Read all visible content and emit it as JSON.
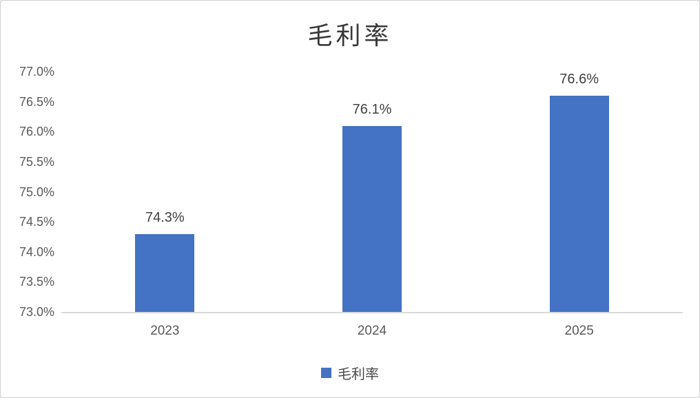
{
  "chart": {
    "title": "毛利率",
    "legend": {
      "label": "毛利率",
      "swatch_color": "#4472C4"
    }
  },
  "chart_data": {
    "type": "bar",
    "title": "毛利率",
    "categories": [
      "2023",
      "2024",
      "2025"
    ],
    "series": [
      {
        "name": "毛利率",
        "color": "#4472C4",
        "values": [
          74.3,
          76.1,
          76.6
        ],
        "data_labels": [
          "74.3%",
          "76.1%",
          "76.6%"
        ]
      }
    ],
    "xlabel": "",
    "ylabel": "",
    "ylim": [
      73.0,
      77.0
    ],
    "ytick_step": 0.5,
    "ytick_labels": [
      "73.0%",
      "73.5%",
      "74.0%",
      "74.5%",
      "75.0%",
      "75.5%",
      "76.0%",
      "76.5%",
      "77.0%"
    ],
    "grid": false,
    "legend_position": "bottom",
    "axis_line_color": "#D9D9D9",
    "tick_label_color": "#595959",
    "data_label_color": "#404040",
    "title_color": "#383838"
  }
}
